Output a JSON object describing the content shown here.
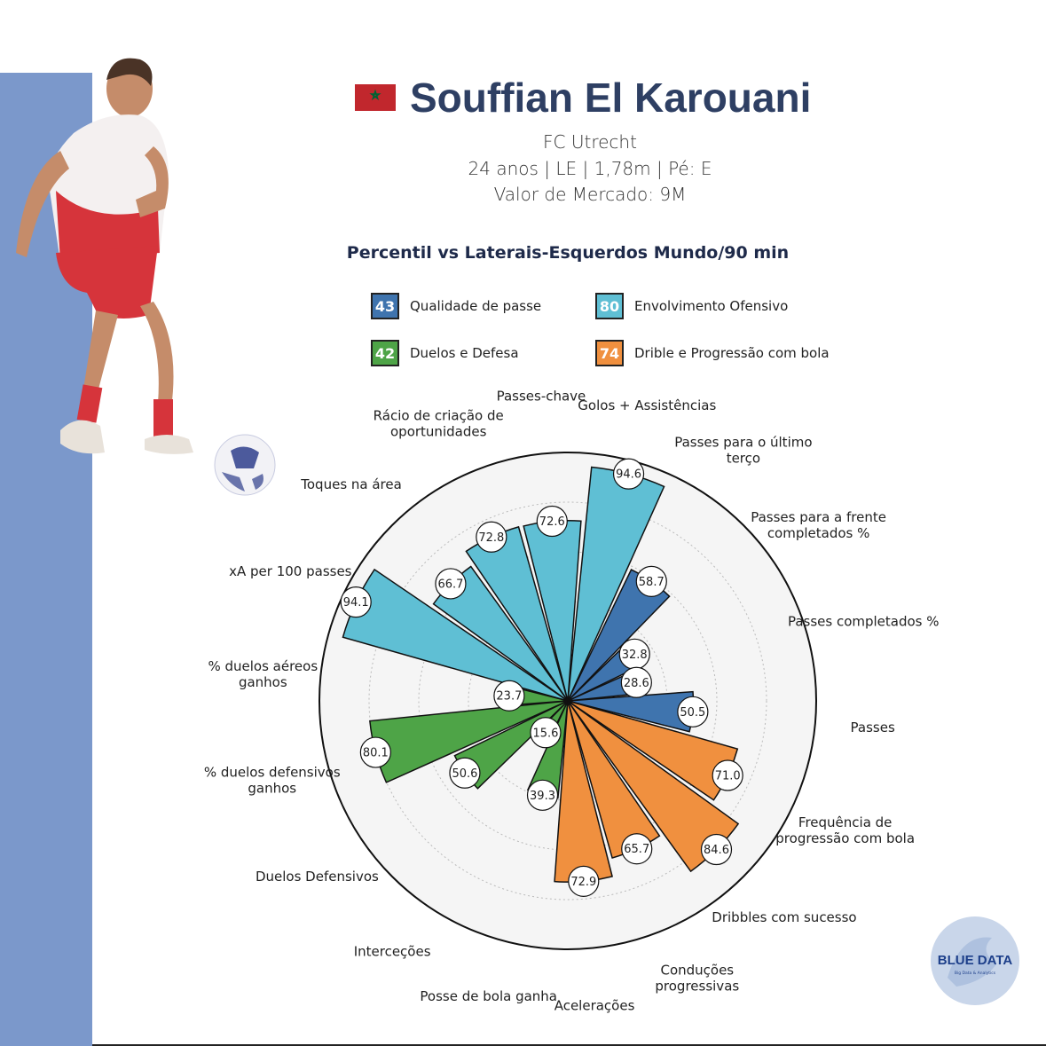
{
  "header": {
    "player_name": "Souffian El Karouani",
    "club": "FC Utrecht",
    "details": "24 anos | LE | 1,78m | Pé: E",
    "market_value": "Valor de Mercado: 9M"
  },
  "subtitle": "Percentil vs Laterais-Esquerdos Mundo/90 min",
  "legend": [
    {
      "value": "43",
      "label": "Qualidade de passe",
      "color": "#3f74ae"
    },
    {
      "value": "80",
      "label": "Envolvimento Ofensivo",
      "color": "#5fbfd4"
    },
    {
      "value": "42",
      "label": "Duelos e Defesa",
      "color": "#4ea447"
    },
    {
      "value": "74",
      "label": "Drible e Progressão com bola",
      "color": "#f0903f"
    }
  ],
  "logo": {
    "text": "BLUE DATA",
    "tagline": "Big Data & Analytics"
  },
  "chart_data": {
    "type": "polar-bar",
    "rlim": [
      0,
      100
    ],
    "grid": true,
    "categories": [
      {
        "label": "Golos + Assistências",
        "value": 94.6,
        "group": "Envolvimento Ofensivo"
      },
      {
        "label": "Passes para o último terço",
        "value": 58.7,
        "group": "Qualidade de passe"
      },
      {
        "label": "Passes para a frente completados %",
        "value": 32.8,
        "group": "Qualidade de passe"
      },
      {
        "label": "Passes completados %",
        "value": 28.6,
        "group": "Qualidade de passe"
      },
      {
        "label": "Passes",
        "value": 50.5,
        "group": "Qualidade de passe"
      },
      {
        "label": "Frequência de progressão com bola",
        "value": 71.0,
        "group": "Drible e Progressão com bola"
      },
      {
        "label": "Dribbles com sucesso",
        "value": 84.6,
        "group": "Drible e Progressão com bola"
      },
      {
        "label": "Conduções progressivas",
        "value": 65.7,
        "group": "Drible e Progressão com bola"
      },
      {
        "label": "Acelerações",
        "value": 72.9,
        "group": "Drible e Progressão com bola"
      },
      {
        "label": "Posse de bola ganha",
        "value": 39.3,
        "group": "Duelos e Defesa"
      },
      {
        "label": "Interceções",
        "value": 15.6,
        "group": "Duelos e Defesa"
      },
      {
        "label": "Duelos Defensivos",
        "value": 50.6,
        "group": "Duelos e Defesa"
      },
      {
        "label": "% duelos defensivos ganhos",
        "value": 80.1,
        "group": "Duelos e Defesa"
      },
      {
        "label": "% duelos aéreos ganhos",
        "value": 23.7,
        "group": "Duelos e Defesa"
      },
      {
        "label": "xA per 100 passes",
        "value": 94.1,
        "group": "Envolvimento Ofensivo"
      },
      {
        "label": "Toques na área",
        "value": 66.7,
        "group": "Envolvimento Ofensivo"
      },
      {
        "label": "Rácio de criação de oportunidades",
        "value": 72.8,
        "group": "Envolvimento Ofensivo"
      },
      {
        "label": "Passes-chave",
        "value": 72.6,
        "group": "Envolvimento Ofensivo"
      }
    ],
    "group_colors": {
      "Qualidade de passe": "#3f74ae",
      "Envolvimento Ofensivo": "#5fbfd4",
      "Duelos e Defesa": "#4ea447",
      "Drible e Progressão com bola": "#f0903f"
    }
  }
}
